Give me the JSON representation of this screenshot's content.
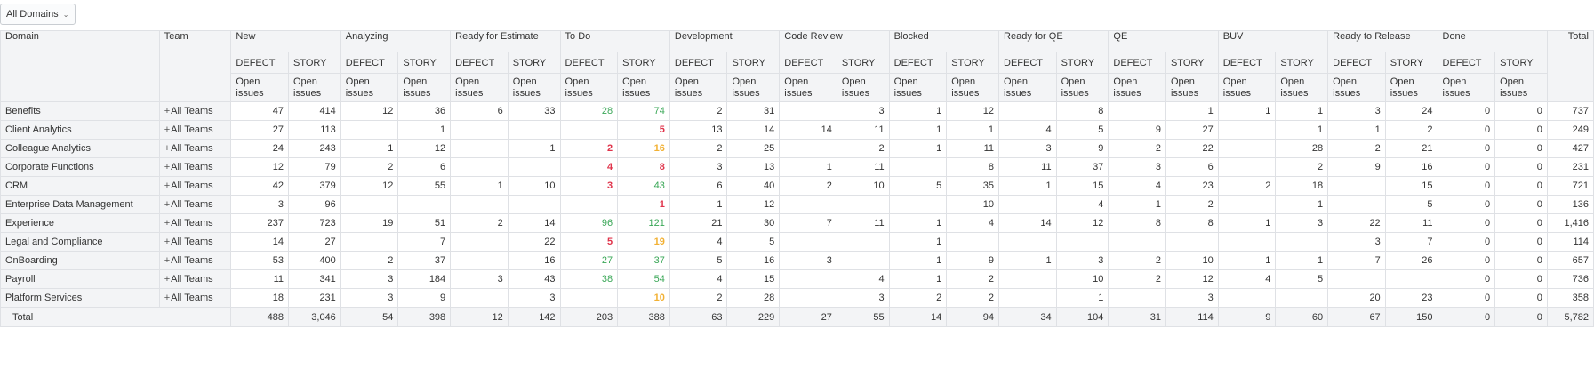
{
  "filter": {
    "label": "All Domains",
    "icon": "chevron-down-icon"
  },
  "header": {
    "domain_label": "Domain",
    "team_label": "Team",
    "total_label": "Total",
    "defect_label": "DEFECT",
    "story_label": "STORY",
    "open_label_line1": "Open",
    "open_label_line2": "issues",
    "statuses": [
      "New",
      "Analyzing",
      "Ready for Estimate",
      "To Do",
      "Development",
      "Code Review",
      "Blocked",
      "Ready for QE",
      "QE",
      "BUV",
      "Ready to Release",
      "Done"
    ]
  },
  "colors": {
    "red": "#e0344b",
    "green": "#3aa757",
    "orange": "#f2b134",
    "header_bg": "#f3f4f6",
    "border": "#dfe1e5"
  },
  "team_all": "All Teams",
  "rows": [
    {
      "domain": "Benefits",
      "values": [
        "47",
        "414",
        "12",
        "36",
        "6",
        "33",
        "28",
        "74",
        "2",
        "31",
        "",
        "3",
        "1",
        "12",
        "",
        "8",
        "",
        "1",
        "1",
        "1",
        "3",
        "24",
        "0",
        "0"
      ],
      "colors": [
        "",
        "",
        "",
        "",
        "",
        "",
        "green",
        "green",
        "",
        "",
        "",
        "",
        "",
        "",
        "",
        "",
        "",
        "",
        "",
        "",
        "",
        "",
        "",
        ""
      ],
      "total": "737"
    },
    {
      "domain": "Client Analytics",
      "values": [
        "27",
        "113",
        "",
        "1",
        "",
        "",
        "",
        "5",
        "13",
        "14",
        "14",
        "11",
        "1",
        "1",
        "4",
        "5",
        "9",
        "27",
        "",
        "1",
        "1",
        "2",
        "0",
        "0"
      ],
      "colors": [
        "",
        "",
        "",
        "",
        "",
        "",
        "",
        "red",
        "",
        "",
        "",
        "",
        "",
        "",
        "",
        "",
        "",
        "",
        "",
        "",
        "",
        "",
        "",
        ""
      ],
      "total": "249"
    },
    {
      "domain": "Colleague Analytics",
      "values": [
        "24",
        "243",
        "1",
        "12",
        "",
        "1",
        "2",
        "16",
        "2",
        "25",
        "",
        "2",
        "1",
        "11",
        "3",
        "9",
        "2",
        "22",
        "",
        "28",
        "2",
        "21",
        "0",
        "0"
      ],
      "colors": [
        "",
        "",
        "",
        "",
        "",
        "",
        "red",
        "orange",
        "",
        "",
        "",
        "",
        "",
        "",
        "",
        "",
        "",
        "",
        "",
        "",
        "",
        "",
        "",
        ""
      ],
      "total": "427"
    },
    {
      "domain": "Corporate Functions",
      "values": [
        "12",
        "79",
        "2",
        "6",
        "",
        "",
        "4",
        "8",
        "3",
        "13",
        "1",
        "11",
        "",
        "8",
        "11",
        "37",
        "3",
        "6",
        "",
        "2",
        "9",
        "16",
        "0",
        "0"
      ],
      "colors": [
        "",
        "",
        "",
        "",
        "",
        "",
        "red",
        "red",
        "",
        "",
        "",
        "",
        "",
        "",
        "",
        "",
        "",
        "",
        "",
        "",
        "",
        "",
        "",
        ""
      ],
      "total": "231"
    },
    {
      "domain": "CRM",
      "values": [
        "42",
        "379",
        "12",
        "55",
        "1",
        "10",
        "3",
        "43",
        "6",
        "40",
        "2",
        "10",
        "5",
        "35",
        "1",
        "15",
        "4",
        "23",
        "2",
        "18",
        "",
        "15",
        "0",
        "0"
      ],
      "colors": [
        "",
        "",
        "",
        "",
        "",
        "",
        "red",
        "green",
        "",
        "",
        "",
        "",
        "",
        "",
        "",
        "",
        "",
        "",
        "",
        "",
        "",
        "",
        "",
        ""
      ],
      "total": "721"
    },
    {
      "domain": "Enterprise Data Management",
      "values": [
        "3",
        "96",
        "",
        "",
        "",
        "",
        "",
        "1",
        "1",
        "12",
        "",
        "",
        "",
        "10",
        "",
        "4",
        "1",
        "2",
        "",
        "1",
        "",
        "5",
        "0",
        "0"
      ],
      "colors": [
        "",
        "",
        "",
        "",
        "",
        "",
        "",
        "red",
        "",
        "",
        "",
        "",
        "",
        "",
        "",
        "",
        "",
        "",
        "",
        "",
        "",
        "",
        "",
        ""
      ],
      "total": "136"
    },
    {
      "domain": "Experience",
      "values": [
        "237",
        "723",
        "19",
        "51",
        "2",
        "14",
        "96",
        "121",
        "21",
        "30",
        "7",
        "11",
        "1",
        "4",
        "14",
        "12",
        "8",
        "8",
        "1",
        "3",
        "22",
        "11",
        "0",
        "0"
      ],
      "colors": [
        "",
        "",
        "",
        "",
        "",
        "",
        "green",
        "green",
        "",
        "",
        "",
        "",
        "",
        "",
        "",
        "",
        "",
        "",
        "",
        "",
        "",
        "",
        "",
        ""
      ],
      "total": "1,416"
    },
    {
      "domain": "Legal and Compliance",
      "values": [
        "14",
        "27",
        "",
        "7",
        "",
        "22",
        "5",
        "19",
        "4",
        "5",
        "",
        "",
        "1",
        "",
        "",
        "",
        "",
        "",
        "",
        "",
        "3",
        "7",
        "0",
        "0"
      ],
      "colors": [
        "",
        "",
        "",
        "",
        "",
        "",
        "red",
        "orange",
        "",
        "",
        "",
        "",
        "",
        "",
        "",
        "",
        "",
        "",
        "",
        "",
        "",
        "",
        "",
        ""
      ],
      "total": "114"
    },
    {
      "domain": "OnBoarding",
      "values": [
        "53",
        "400",
        "2",
        "37",
        "",
        "16",
        "27",
        "37",
        "5",
        "16",
        "3",
        "",
        "1",
        "9",
        "1",
        "3",
        "2",
        "10",
        "1",
        "1",
        "7",
        "26",
        "0",
        "0"
      ],
      "colors": [
        "",
        "",
        "",
        "",
        "",
        "",
        "green",
        "green",
        "",
        "",
        "",
        "",
        "",
        "",
        "",
        "",
        "",
        "",
        "",
        "",
        "",
        "",
        "",
        ""
      ],
      "total": "657"
    },
    {
      "domain": "Payroll",
      "values": [
        "11",
        "341",
        "3",
        "184",
        "3",
        "43",
        "38",
        "54",
        "4",
        "15",
        "",
        "4",
        "1",
        "2",
        "",
        "10",
        "2",
        "12",
        "4",
        "5",
        "",
        "",
        "0",
        "0"
      ],
      "colors": [
        "",
        "",
        "",
        "",
        "",
        "",
        "green",
        "green",
        "",
        "",
        "",
        "",
        "",
        "",
        "",
        "",
        "",
        "",
        "",
        "",
        "",
        "",
        "",
        ""
      ],
      "total": "736"
    },
    {
      "domain": "Platform Services",
      "values": [
        "18",
        "231",
        "3",
        "9",
        "",
        "3",
        "",
        "10",
        "2",
        "28",
        "",
        "3",
        "2",
        "2",
        "",
        "1",
        "",
        "3",
        "",
        "",
        "20",
        "23",
        "0",
        "0"
      ],
      "colors": [
        "",
        "",
        "",
        "",
        "",
        "",
        "",
        "orange",
        "",
        "",
        "",
        "",
        "",
        "",
        "",
        "",
        "",
        "",
        "",
        "",
        "",
        "",
        "",
        ""
      ],
      "total": "358"
    }
  ],
  "totals": {
    "label": "Total",
    "values": [
      "488",
      "3,046",
      "54",
      "398",
      "12",
      "142",
      "203",
      "388",
      "63",
      "229",
      "27",
      "55",
      "14",
      "94",
      "34",
      "104",
      "31",
      "114",
      "9",
      "60",
      "67",
      "150",
      "0",
      "0"
    ],
    "total": "5,782"
  }
}
